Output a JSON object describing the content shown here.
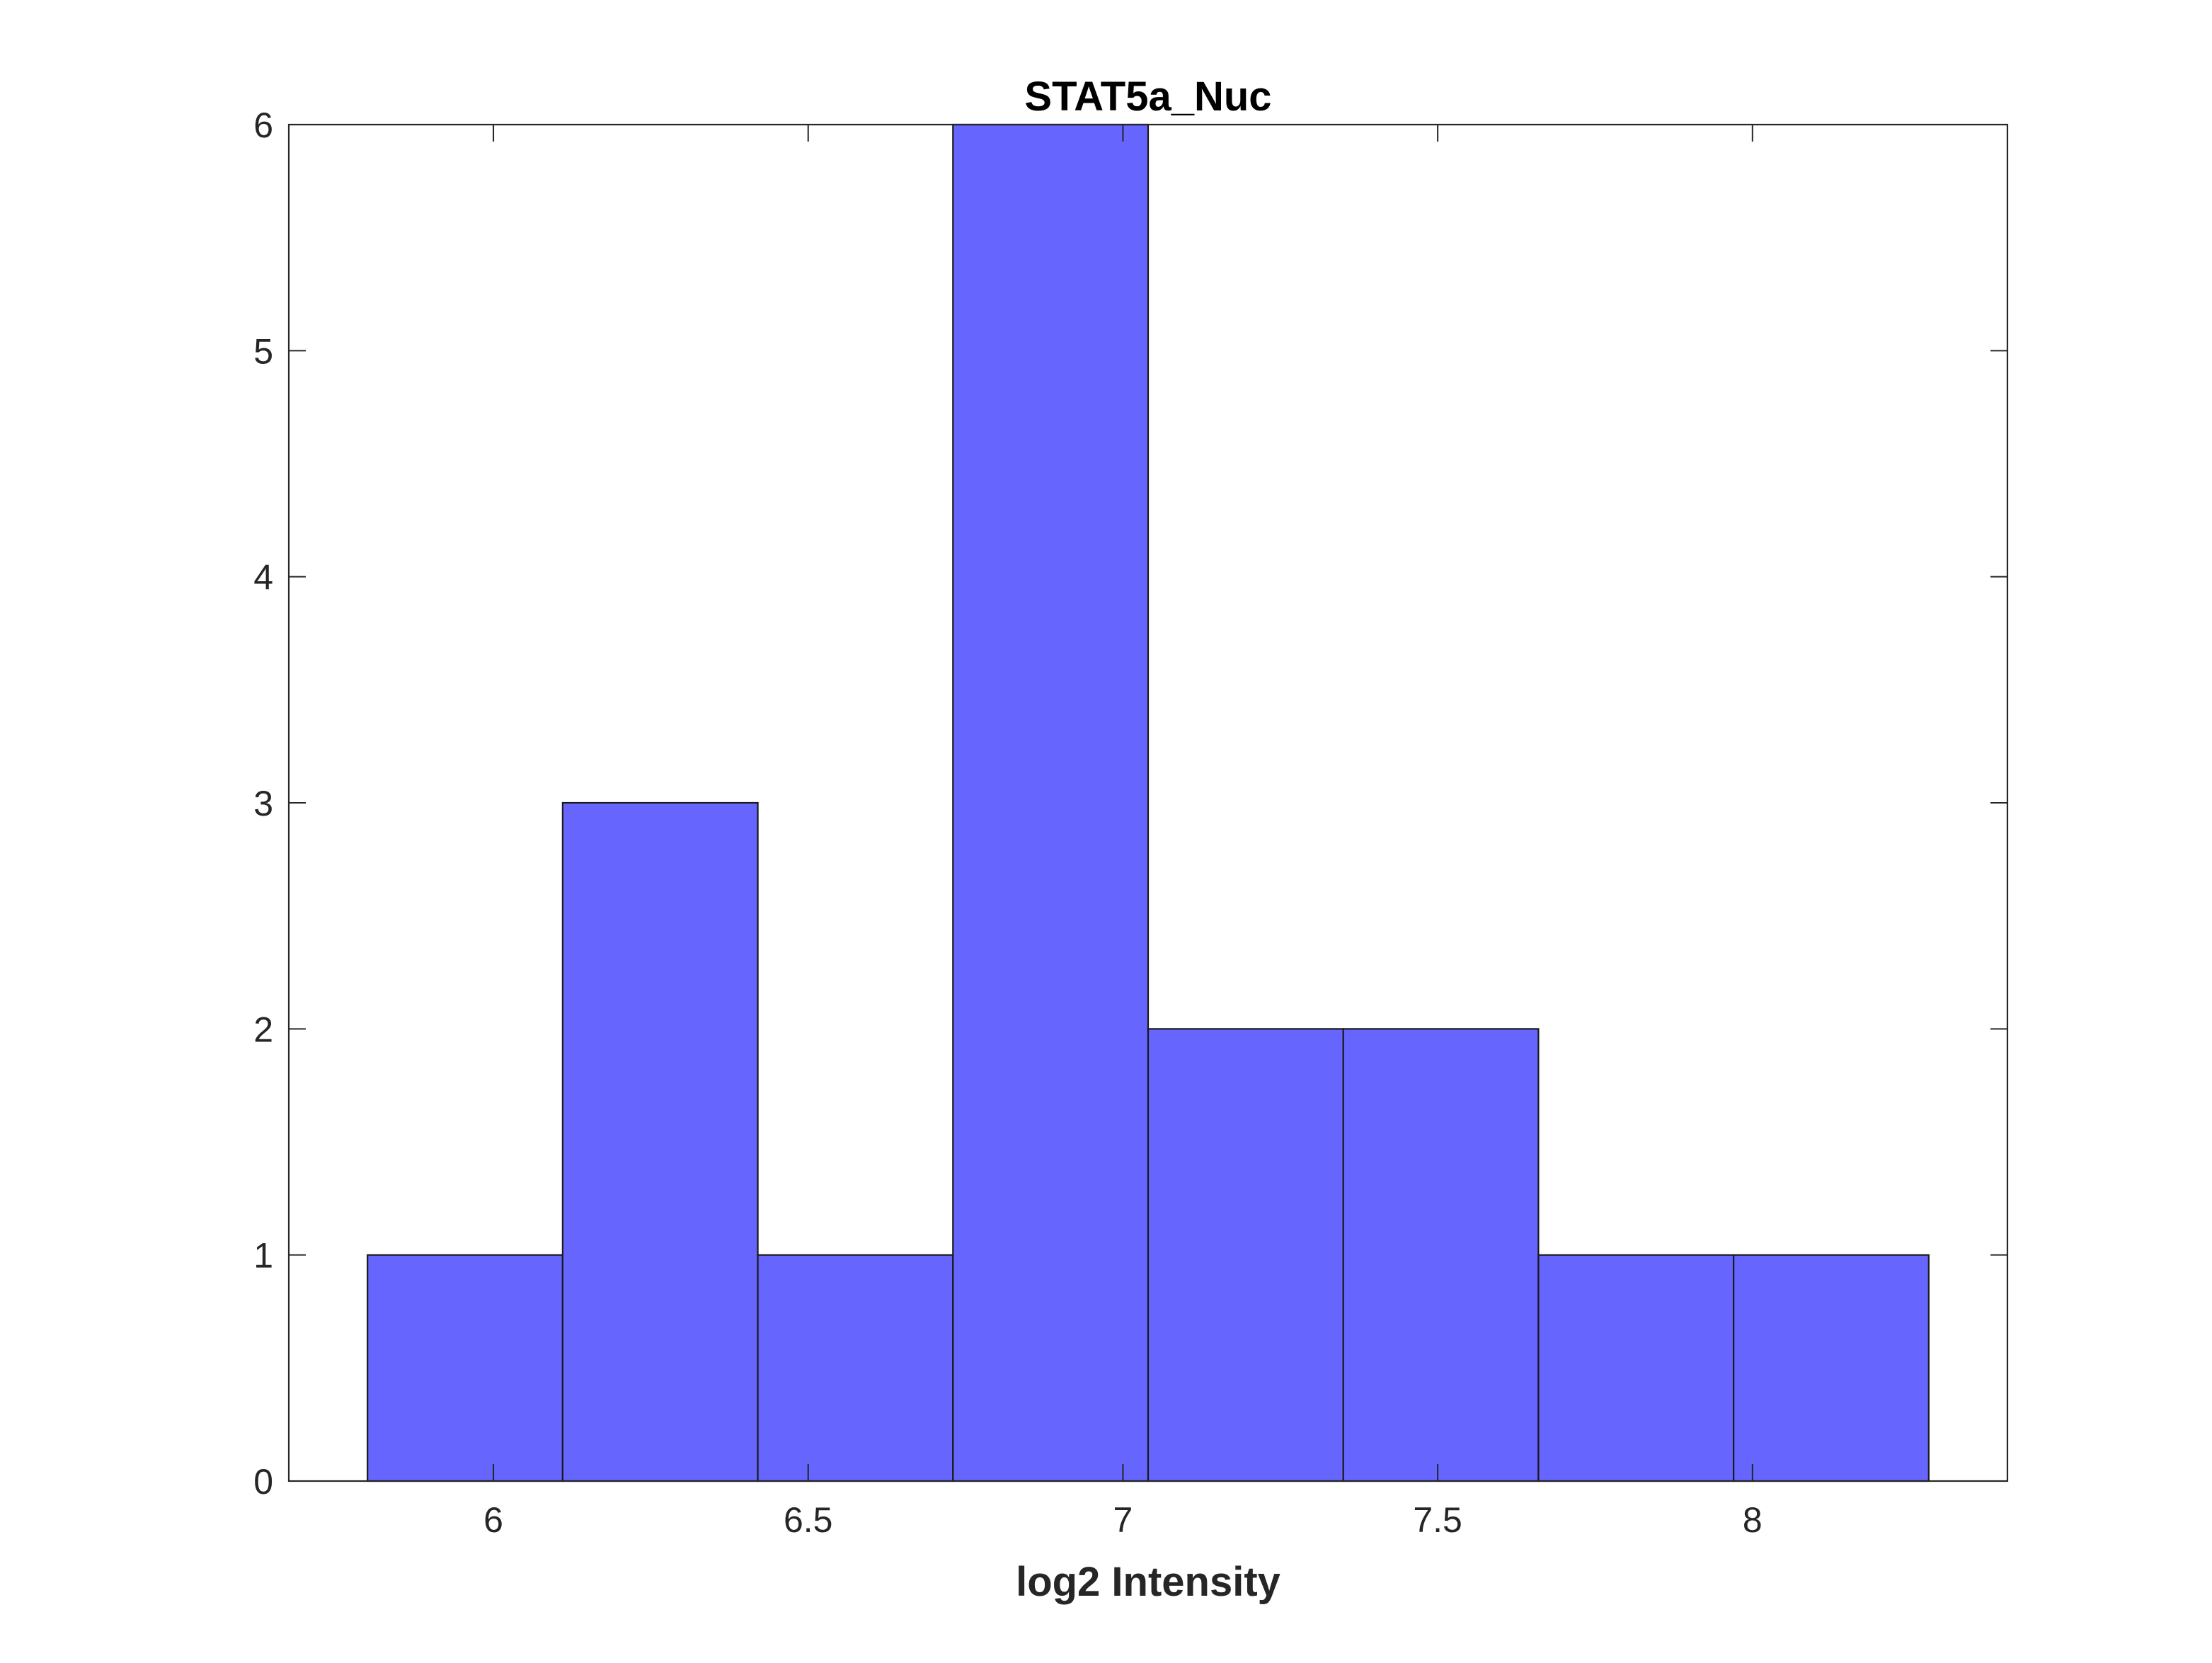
{
  "chart_data": {
    "type": "bar",
    "subtype": "histogram",
    "title": "STAT5a_Nuc",
    "xlabel": "log2 Intensity",
    "ylabel": "",
    "bin_edges": [
      5.8,
      6.11,
      6.42,
      6.73,
      7.04,
      7.35,
      7.66,
      7.97,
      8.28
    ],
    "values": [
      1,
      3,
      1,
      6,
      2,
      2,
      1,
      1
    ],
    "xlim": [
      5.675,
      8.405
    ],
    "ylim": [
      0,
      6
    ],
    "xticks": [
      6,
      6.5,
      7,
      7.5,
      8
    ],
    "xtick_labels": [
      "6",
      "6.5",
      "7",
      "7.5",
      "8"
    ],
    "yticks": [
      0,
      1,
      2,
      3,
      4,
      5,
      6
    ],
    "ytick_labels": [
      "0",
      "1",
      "2",
      "3",
      "4",
      "5",
      "6"
    ],
    "bar_color": "#6666ff",
    "edge_color": "#1a1a1a",
    "grid": false,
    "legend": "none"
  }
}
